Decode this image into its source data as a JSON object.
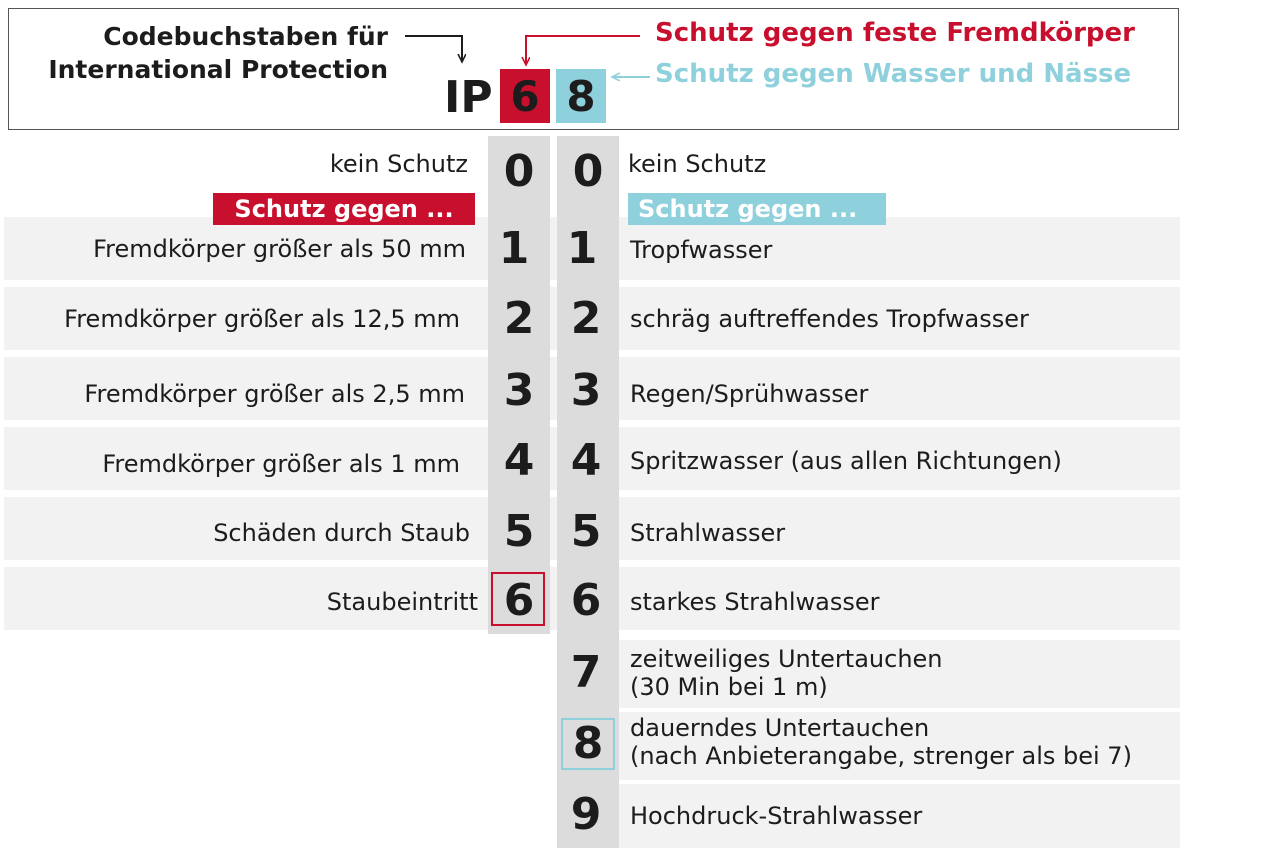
{
  "header": {
    "title_line1": "Codebuchstaben für",
    "title_line2": "International Protection",
    "prefix": "IP",
    "digit1": "6",
    "digit2": "8",
    "label_solid": "Schutz gegen feste Fremdkörper",
    "label_water": "Schutz gegen Wasser und Nässe"
  },
  "colors": {
    "red": "#c8102e",
    "blue": "#8fd0dd",
    "column_gray": "#dcdcdc",
    "row_band": "#f2f2f2"
  },
  "left": {
    "none": "kein Schutz",
    "heading": "Schutz gegen ...",
    "rows": [
      {
        "digit": "0",
        "text": ""
      },
      {
        "digit": "1",
        "text": "Fremdkörper größer als 50 mm"
      },
      {
        "digit": "2",
        "text": "Fremdkörper größer als 12,5 mm"
      },
      {
        "digit": "3",
        "text": "Fremdkörper größer als 2,5 mm"
      },
      {
        "digit": "4",
        "text": "Fremdkörper größer als 1 mm"
      },
      {
        "digit": "5",
        "text": "Schäden durch Staub"
      },
      {
        "digit": "6",
        "text": "Staubeintritt"
      }
    ],
    "highlight": "6"
  },
  "right": {
    "none": "kein Schutz",
    "heading": "Schutz gegen ...",
    "rows": [
      {
        "digit": "0",
        "text": ""
      },
      {
        "digit": "1",
        "text": "Tropfwasser"
      },
      {
        "digit": "2",
        "text": "schräg auftreffendes Tropfwasser"
      },
      {
        "digit": "3",
        "text": "Regen/Sprühwasser"
      },
      {
        "digit": "4",
        "text": "Spritzwasser (aus allen Richtungen)"
      },
      {
        "digit": "5",
        "text": "Strahlwasser"
      },
      {
        "digit": "6",
        "text": "starkes Strahlwasser"
      },
      {
        "digit": "7",
        "text": "zeitweiliges Untertauchen",
        "text2": "(30 Min bei 1 m)"
      },
      {
        "digit": "8",
        "text": "dauerndes Untertauchen",
        "text2": "(nach Anbieterangabe, strenger als bei 7)"
      },
      {
        "digit": "9",
        "text": "Hochdruck-Strahlwasser"
      }
    ],
    "highlight": "8"
  }
}
